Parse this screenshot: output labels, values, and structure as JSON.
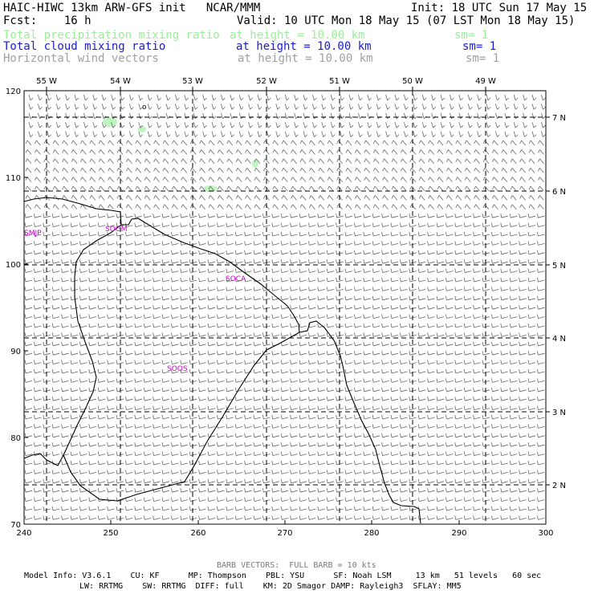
{
  "header": {
    "model_line": "HAIC-HIWC 13km ARW-GFS init   NCAR/MMM",
    "init_line": "Init: 18 UTC Sun 17 May 15",
    "fcst_line": "Fcst:    16 h",
    "valid_line": "Valid: 10 UTC Mon 18 May 15 (07 LST Mon 18 May 15)",
    "fields": [
      {
        "name": "Total precipitation mixing ratio",
        "level": "at height = 10.00 km",
        "sm": "sm= 1",
        "color": "#99ee99"
      },
      {
        "name": "Total cloud mixing ratio",
        "level": "at height = 10.00 km",
        "sm": "sm= 1",
        "color": "#1b1bd6"
      },
      {
        "name": "Horizontal wind vectors",
        "level": "at height = 10.00 km",
        "sm": "sm= 1",
        "color": "#a0a0a0"
      }
    ]
  },
  "map": {
    "x_ticks": [
      "240",
      "250",
      "260",
      "270",
      "280",
      "290",
      "300"
    ],
    "y_ticks": [
      "120",
      "110",
      "100",
      "90",
      "80",
      "70"
    ],
    "lon_labels": [
      "55 W",
      "54 W",
      "53 W",
      "52 W",
      "51 W",
      "50 W",
      "49 W"
    ],
    "lat_labels": [
      "7 N",
      "6 N",
      "5 N",
      "4 N",
      "3 N",
      "2 N"
    ],
    "stations": [
      "SMJP",
      "SOGM",
      "SOCA",
      "SOOS"
    ],
    "marker_symbol": "o",
    "coast_color": "#000000",
    "station_color": "#cc00cc",
    "precip_color": "#bff5bf"
  },
  "footer": {
    "barb_note": "BARB VECTORS:  FULL BARB = 10 kts",
    "model_info_line1": "Model Info: V3.6.1    CU: KF      MP: Thompson    PBL: YSU      SF: Noah LSM     13 km   51 levels   60 sec",
    "model_info_line2": "LW: RRTMG    SW: RRTMG  DIFF: full    KM: 2D Smagor DAMP: Rayleigh3  SFLAY: MM5"
  }
}
